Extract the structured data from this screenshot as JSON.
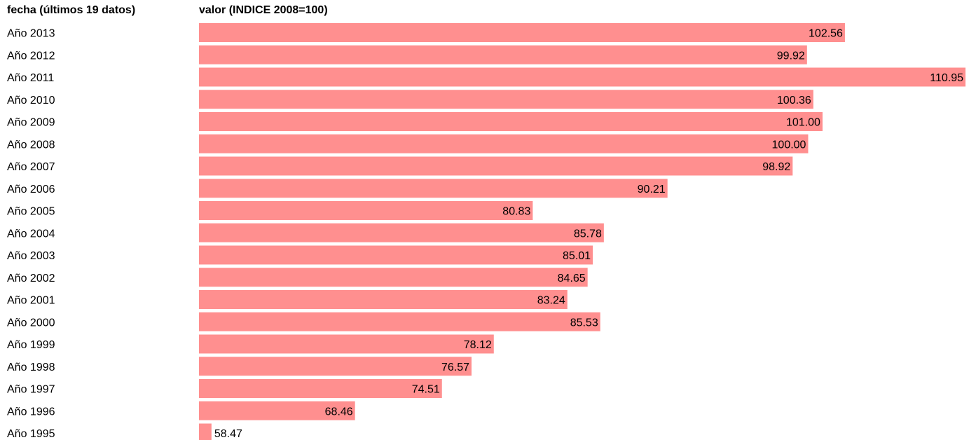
{
  "header": {
    "date_column": "fecha (últimos 19 datos)",
    "value_column": "valor (INDICE 2008=100)"
  },
  "chart_data": {
    "type": "bar",
    "orientation": "horizontal",
    "bar_color": "#ff8f8f",
    "categories": [
      "Año 2013",
      "Año 2012",
      "Año 2011",
      "Año 2010",
      "Año 2009",
      "Año 2008",
      "Año 2007",
      "Año 2006",
      "Año 2005",
      "Año 2004",
      "Año 2003",
      "Año 2002",
      "Año 2001",
      "Año 2000",
      "Año 1999",
      "Año 1998",
      "Año 1997",
      "Año 1996",
      "Año 1995"
    ],
    "values": [
      102.56,
      99.92,
      110.95,
      100.36,
      101.0,
      100.0,
      98.92,
      90.21,
      80.83,
      85.78,
      85.01,
      84.65,
      83.24,
      85.53,
      78.12,
      76.57,
      74.51,
      68.46,
      58.47
    ],
    "value_labels": [
      "102.56",
      "99.92",
      "110.95",
      "100.36",
      "101.00",
      "100.00",
      "98.92",
      "90.21",
      "80.83",
      "85.78",
      "85.01",
      "84.65",
      "83.24",
      "85.53",
      "78.12",
      "76.57",
      "74.51",
      "68.46",
      "58.47"
    ],
    "xlim": [
      57.6,
      110.95
    ],
    "grid": false,
    "legend": "none"
  }
}
